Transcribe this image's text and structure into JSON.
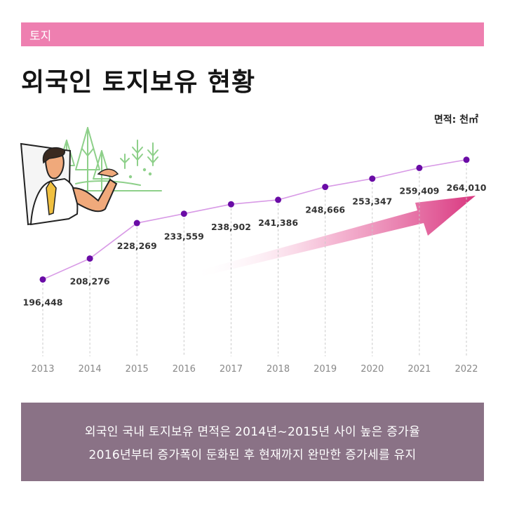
{
  "category_tag": "토지",
  "title": "외국인 토지보유 현황",
  "unit_label": "면적: 천㎡",
  "chart_data": {
    "type": "line",
    "title": "외국인 토지보유 현황",
    "xlabel": "",
    "ylabel": "",
    "unit": "천㎡",
    "categories": [
      "2013",
      "2014",
      "2015",
      "2016",
      "2017",
      "2018",
      "2019",
      "2020",
      "2021",
      "2022"
    ],
    "values": [
      196448,
      208276,
      228269,
      233559,
      238902,
      241386,
      248666,
      253347,
      259409,
      264010
    ],
    "value_labels": [
      "196,448",
      "208,276",
      "228,269",
      "233,559",
      "238,902",
      "241,386",
      "248,666",
      "253,347",
      "259,409",
      "264,010"
    ],
    "ylim": [
      180000,
      275000
    ],
    "grid": false,
    "legend": "none",
    "colors": {
      "line": "#d89ae6",
      "marker": "#6a0ca6",
      "arrow": "#d9367f",
      "label": "#333333",
      "axis_label": "#888888"
    }
  },
  "summary": {
    "line1": "외국인 국내 토지보유 면적은 2014년~2015년 사이 높은 증가율",
    "line2": "2016년부터 증가폭이 둔화된 후 현재까지 완만한 증가세를 유지"
  },
  "colors": {
    "tag_bar": "#ee7fb0",
    "summary_bg": "#8a7286"
  },
  "illustration": {
    "icon": "presenter-with-forest-scene"
  }
}
